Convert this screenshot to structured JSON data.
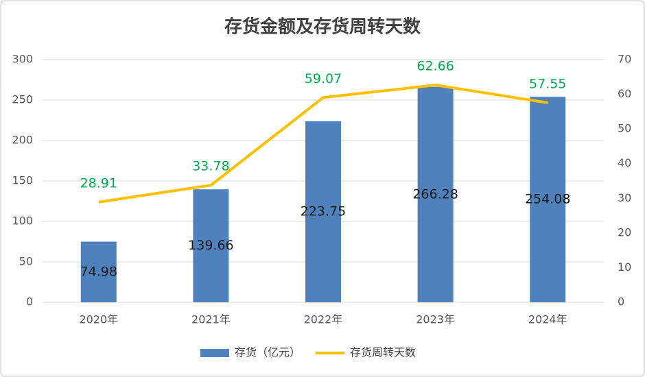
{
  "chart_data": {
    "type": "bar",
    "title": "存货金额及存货周转天数",
    "categories": [
      "2020年",
      "2021年",
      "2022年",
      "2023年",
      "2024年"
    ],
    "series": [
      {
        "name": "存货（亿元）",
        "type": "bar",
        "color": "#4f81bd",
        "label_color": "#1a1a1a",
        "values": [
          74.98,
          139.66,
          223.75,
          266.28,
          254.08
        ]
      },
      {
        "name": "存货周转天数",
        "type": "line",
        "axis": "y2",
        "color": "#ffc000",
        "label_color": "#00b050",
        "values": [
          28.91,
          33.78,
          59.07,
          62.66,
          57.55
        ]
      }
    ],
    "ylim": [
      0,
      300
    ],
    "yticks": [
      0,
      50,
      100,
      150,
      200,
      250,
      300
    ],
    "y2lim": [
      0,
      70
    ],
    "y2ticks": [
      0,
      10,
      20,
      30,
      40,
      50,
      60,
      70
    ],
    "grid": true,
    "legend": "bottom"
  }
}
